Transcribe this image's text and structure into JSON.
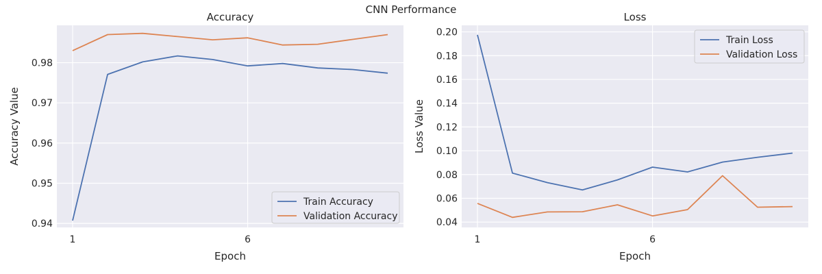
{
  "figure": {
    "title": "CNN Performance"
  },
  "chart_data": [
    {
      "type": "line",
      "title": "Accuracy",
      "xlabel": "Epoch",
      "ylabel": "Accuracy Value",
      "xticks": [
        1,
        6
      ],
      "yticks": [
        "0.94",
        "0.95",
        "0.96",
        "0.97",
        "0.98"
      ],
      "xlim": [
        0.55,
        10.45
      ],
      "ylim": [
        0.939,
        0.9893
      ],
      "grid": true,
      "legend_position": "lower right",
      "x": [
        1,
        2,
        3,
        4,
        5,
        6,
        7,
        8,
        9,
        10
      ],
      "series": [
        {
          "name": "Train Accuracy",
          "color": "#4c72b0",
          "values": [
            0.9407,
            0.9771,
            0.9802,
            0.9817,
            0.9808,
            0.9792,
            0.9798,
            0.9787,
            0.9783,
            0.9774
          ]
        },
        {
          "name": "Validation Accuracy",
          "color": "#dd8452",
          "values": [
            0.983,
            0.987,
            0.9873,
            0.9865,
            0.9857,
            0.9862,
            0.9844,
            0.9846,
            0.9858,
            0.987
          ]
        }
      ]
    },
    {
      "type": "line",
      "title": "Loss",
      "xlabel": "Epoch",
      "ylabel": "Loss Value",
      "xticks": [
        1,
        6
      ],
      "yticks": [
        "0.04",
        "0.06",
        "0.08",
        "0.10",
        "0.12",
        "0.14",
        "0.16",
        "0.18",
        "0.20"
      ],
      "xlim": [
        0.55,
        10.45
      ],
      "ylim": [
        0.0355,
        0.2055
      ],
      "grid": true,
      "legend_position": "upper right",
      "x": [
        1,
        2,
        3,
        4,
        5,
        6,
        7,
        8,
        9,
        10
      ],
      "series": [
        {
          "name": "Train Loss",
          "color": "#4c72b0",
          "values": [
            0.1975,
            0.0812,
            0.0732,
            0.067,
            0.0755,
            0.0862,
            0.0822,
            0.0905,
            0.0945,
            0.098
          ]
        },
        {
          "name": "Validation Loss",
          "color": "#dd8452",
          "values": [
            0.0557,
            0.044,
            0.0485,
            0.0487,
            0.0545,
            0.0452,
            0.0505,
            0.079,
            0.0525,
            0.053
          ]
        }
      ]
    }
  ]
}
